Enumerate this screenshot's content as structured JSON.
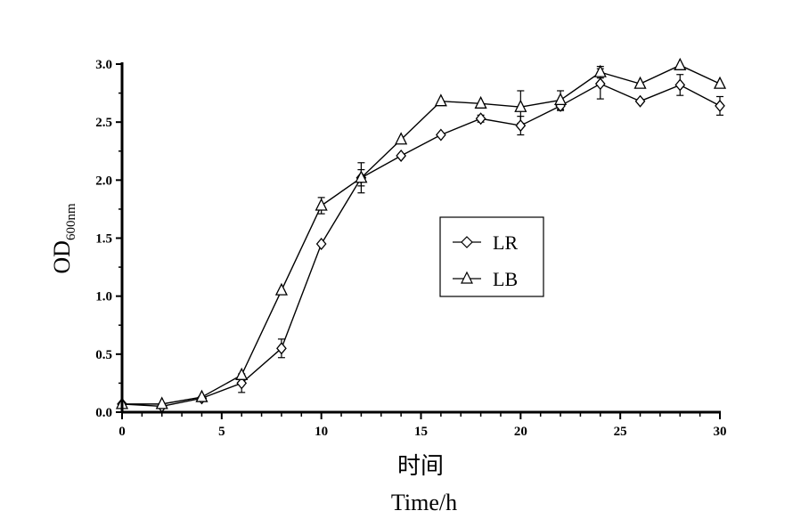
{
  "chart_data": {
    "type": "line",
    "xlabel_cn": "时间",
    "xlabel": "Time/h",
    "ylabel_main": "OD",
    "ylabel_sub": "600nm",
    "xlim": [
      0,
      30
    ],
    "ylim": [
      0,
      3.0
    ],
    "xticks": [
      "0",
      "5",
      "10",
      "15",
      "20",
      "25",
      "30"
    ],
    "yticks": [
      "0.0",
      "0.5",
      "1.0",
      "1.5",
      "2.0",
      "2.5",
      "3.0"
    ],
    "grid": false,
    "legend_position": "center-right",
    "series": [
      {
        "name": "LR",
        "marker": "diamond",
        "x": [
          0,
          2,
          4,
          6,
          8,
          10,
          12,
          14,
          16,
          18,
          20,
          22,
          24,
          26,
          28,
          30
        ],
        "y": [
          0.07,
          0.05,
          0.12,
          0.25,
          0.55,
          1.45,
          2.02,
          2.21,
          2.39,
          2.53,
          2.47,
          2.64,
          2.83,
          2.68,
          2.82,
          2.64
        ],
        "err": [
          0,
          0,
          0,
          0.08,
          0.08,
          0,
          0.07,
          0,
          0,
          0.03,
          0.08,
          0.04,
          0.13,
          0,
          0.09,
          0.08
        ]
      },
      {
        "name": "LB",
        "marker": "triangle",
        "x": [
          0,
          2,
          4,
          6,
          8,
          10,
          12,
          14,
          16,
          18,
          20,
          22,
          24,
          26,
          28,
          30
        ],
        "y": [
          0.07,
          0.07,
          0.13,
          0.32,
          1.05,
          1.78,
          2.02,
          2.35,
          2.68,
          2.66,
          2.63,
          2.69,
          2.93,
          2.83,
          2.99,
          2.83
        ],
        "err": [
          0,
          0,
          0,
          0,
          0,
          0.07,
          0.13,
          0,
          0,
          0,
          0.14,
          0.08,
          0.05,
          0,
          0,
          0
        ]
      }
    ]
  }
}
